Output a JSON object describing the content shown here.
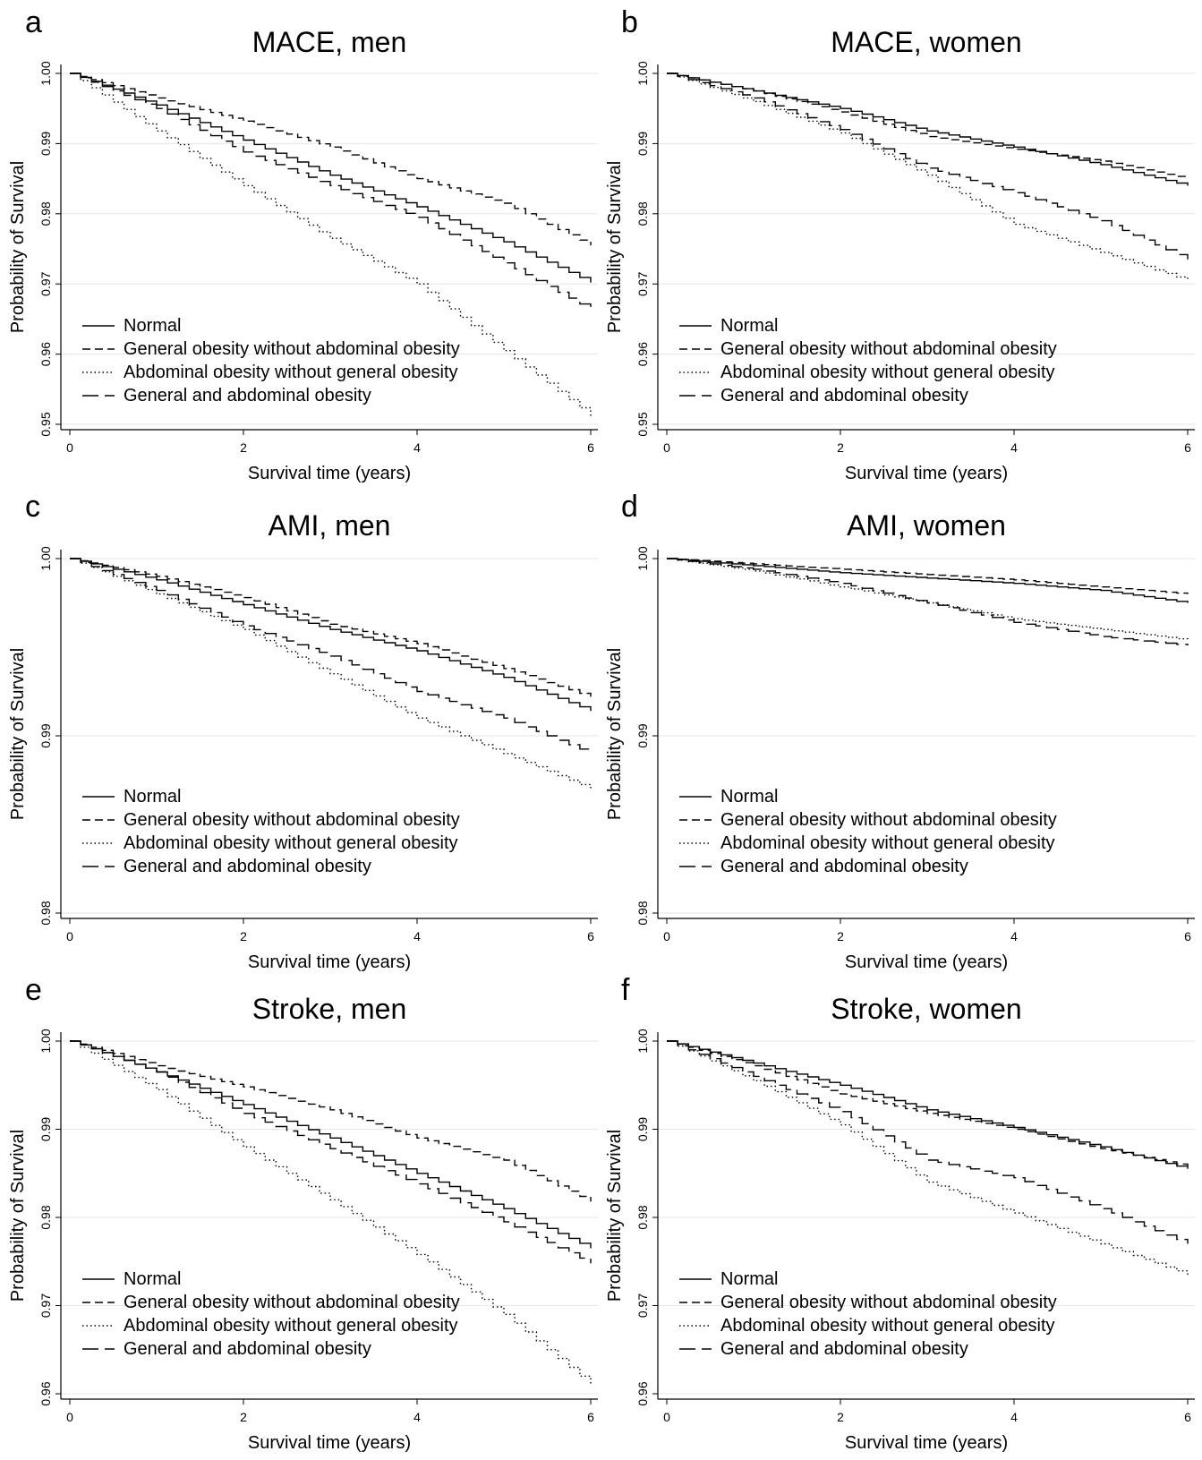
{
  "legend_entries": [
    {
      "label": "Normal",
      "dash": "solid"
    },
    {
      "label": "General obesity without abdominal obesity",
      "dash": "dashed"
    },
    {
      "label": "Abdominal obesity without general obesity",
      "dash": "dotted"
    },
    {
      "label": "General and abdominal obesity",
      "dash": "longdash"
    }
  ],
  "chart_data": [
    {
      "panel": "a",
      "type": "line",
      "title": "MACE, men",
      "xlabel": "Survival time (years)",
      "ylabel": "Probability of Survival",
      "xlim": [
        0,
        6
      ],
      "ylim": [
        0.95,
        1.0
      ],
      "xticks": [
        "0",
        "2",
        "4",
        "6"
      ],
      "yticks": [
        "0.95",
        "0.96",
        "0.97",
        "0.98",
        "0.99",
        "1.00"
      ],
      "grid": true,
      "legend_position": "bottom-left",
      "x": [
        0,
        1,
        2,
        3,
        4,
        5,
        6
      ],
      "series": [
        {
          "name": "Normal",
          "dash": "solid",
          "values": [
            1.0,
            0.9955,
            0.9905,
            0.9855,
            0.981,
            0.976,
            0.9702
          ]
        },
        {
          "name": "General obesity without abdominal obesity",
          "dash": "dashed",
          "values": [
            1.0,
            0.9965,
            0.9932,
            0.9895,
            0.985,
            0.9815,
            0.9755
          ]
        },
        {
          "name": "Abdominal obesity without general obesity",
          "dash": "dotted",
          "values": [
            1.0,
            0.9918,
            0.984,
            0.9765,
            0.97,
            0.9605,
            0.9512
          ]
        },
        {
          "name": "General and abdominal obesity",
          "dash": "longdash",
          "values": [
            1.0,
            0.995,
            0.9888,
            0.984,
            0.9795,
            0.973,
            0.9663
          ]
        }
      ]
    },
    {
      "panel": "b",
      "type": "line",
      "title": "MACE, women",
      "xlabel": "Survival time (years)",
      "ylabel": "Probability of Survival",
      "xlim": [
        0,
        6
      ],
      "ylim": [
        0.95,
        1.0
      ],
      "xticks": [
        "0",
        "2",
        "4",
        "6"
      ],
      "yticks": [
        "0.95",
        "0.96",
        "0.97",
        "0.98",
        "0.99",
        "1.00"
      ],
      "grid": true,
      "legend_position": "bottom-left",
      "x": [
        0,
        1,
        2,
        3,
        4,
        5,
        6
      ],
      "series": [
        {
          "name": "Normal",
          "dash": "solid",
          "values": [
            1.0,
            0.9975,
            0.995,
            0.9918,
            0.9895,
            0.987,
            0.984
          ]
        },
        {
          "name": "General obesity without abdominal obesity",
          "dash": "dashed",
          "values": [
            1.0,
            0.9975,
            0.9945,
            0.991,
            0.9892,
            0.9875,
            0.985
          ]
        },
        {
          "name": "Abdominal obesity without general obesity",
          "dash": "dotted",
          "values": [
            1.0,
            0.996,
            0.9915,
            0.9855,
            0.9785,
            0.9745,
            0.9705
          ]
        },
        {
          "name": "General and abdominal obesity",
          "dash": "longdash",
          "values": [
            1.0,
            0.9965,
            0.992,
            0.9865,
            0.983,
            0.979,
            0.9735
          ]
        }
      ]
    },
    {
      "panel": "c",
      "type": "line",
      "title": "AMI, men",
      "xlabel": "Survival time (years)",
      "ylabel": "Probability of Survival",
      "xlim": [
        0,
        6
      ],
      "ylim": [
        0.98,
        1.0
      ],
      "xticks": [
        "0",
        "2",
        "4",
        "6"
      ],
      "yticks": [
        "0.98",
        "0.99",
        "1.00"
      ],
      "grid": true,
      "legend_position": "bottom-left",
      "x": [
        0,
        1,
        2,
        3,
        4,
        5,
        6
      ],
      "series": [
        {
          "name": "Normal",
          "dash": "solid",
          "values": [
            1.0,
            0.9988,
            0.9974,
            0.996,
            0.9948,
            0.9933,
            0.9914
          ]
        },
        {
          "name": "General obesity without abdominal obesity",
          "dash": "dashed",
          "values": [
            1.0,
            0.999,
            0.9978,
            0.9963,
            0.9952,
            0.9938,
            0.9922
          ]
        },
        {
          "name": "Abdominal obesity without general obesity",
          "dash": "dotted",
          "values": [
            1.0,
            0.998,
            0.996,
            0.9935,
            0.991,
            0.989,
            0.987
          ]
        },
        {
          "name": "General and abdominal obesity",
          "dash": "longdash",
          "values": [
            1.0,
            0.9982,
            0.9962,
            0.9945,
            0.9925,
            0.991,
            0.989
          ]
        }
      ]
    },
    {
      "panel": "d",
      "type": "line",
      "title": "AMI, women",
      "xlabel": "Survival time (years)",
      "ylabel": "Probability of Survival",
      "xlim": [
        0,
        6
      ],
      "ylim": [
        0.98,
        1.0
      ],
      "xticks": [
        "0",
        "2",
        "4",
        "6"
      ],
      "yticks": [
        "0.98",
        "0.99",
        "1.00"
      ],
      "grid": true,
      "legend_position": "bottom-left",
      "x": [
        0,
        1,
        2,
        3,
        4,
        5,
        6
      ],
      "series": [
        {
          "name": "Normal",
          "dash": "solid",
          "values": [
            1.0,
            0.9996,
            0.9992,
            0.9989,
            0.9986,
            0.9982,
            0.9975
          ]
        },
        {
          "name": "General obesity without abdominal obesity",
          "dash": "dashed",
          "values": [
            1.0,
            0.9997,
            0.9994,
            0.9991,
            0.9988,
            0.9984,
            0.998
          ]
        },
        {
          "name": "Abdominal obesity without general obesity",
          "dash": "dotted",
          "values": [
            1.0,
            0.9993,
            0.9984,
            0.9975,
            0.9966,
            0.996,
            0.9954
          ]
        },
        {
          "name": "General and abdominal obesity",
          "dash": "longdash",
          "values": [
            1.0,
            0.9994,
            0.9986,
            0.9975,
            0.9964,
            0.9956,
            0.9951
          ]
        }
      ]
    },
    {
      "panel": "e",
      "type": "line",
      "title": "Stroke, men",
      "xlabel": "Survival time (years)",
      "ylabel": "Probability of Survival",
      "xlim": [
        0,
        6
      ],
      "ylim": [
        0.96,
        1.0
      ],
      "xticks": [
        "0",
        "2",
        "4",
        "6"
      ],
      "yticks": [
        "0.96",
        "0.97",
        "0.98",
        "0.99",
        "1.00"
      ],
      "grid": true,
      "legend_position": "bottom-left",
      "x": [
        0,
        1,
        2,
        3,
        4,
        5,
        6
      ],
      "series": [
        {
          "name": "Normal",
          "dash": "solid",
          "values": [
            1.0,
            0.9965,
            0.9928,
            0.989,
            0.985,
            0.981,
            0.9765
          ]
        },
        {
          "name": "General obesity without abdominal obesity",
          "dash": "dashed",
          "values": [
            1.0,
            0.9972,
            0.9948,
            0.9922,
            0.989,
            0.9865,
            0.9818
          ]
        },
        {
          "name": "Abdominal obesity without general obesity",
          "dash": "dotted",
          "values": [
            1.0,
            0.9945,
            0.988,
            0.982,
            0.9758,
            0.969,
            0.961
          ]
        },
        {
          "name": "General and abdominal obesity",
          "dash": "longdash",
          "values": [
            1.0,
            0.9965,
            0.9918,
            0.9878,
            0.9838,
            0.9795,
            0.9748
          ]
        }
      ]
    },
    {
      "panel": "f",
      "type": "line",
      "title": "Stroke, women",
      "xlabel": "Survival time (years)",
      "ylabel": "Probability of Survival",
      "xlim": [
        0,
        6
      ],
      "ylim": [
        0.96,
        1.0
      ],
      "xticks": [
        "0",
        "2",
        "4",
        "6"
      ],
      "yticks": [
        "0.96",
        "0.97",
        "0.98",
        "0.99",
        "1.00"
      ],
      "grid": true,
      "legend_position": "bottom-left",
      "x": [
        0,
        1,
        2,
        3,
        4,
        5,
        6
      ],
      "series": [
        {
          "name": "Normal",
          "dash": "solid",
          "values": [
            1.0,
            0.9975,
            0.995,
            0.9922,
            0.9902,
            0.988,
            0.9855
          ]
        },
        {
          "name": "General obesity without abdominal obesity",
          "dash": "dashed",
          "values": [
            1.0,
            0.9972,
            0.994,
            0.9918,
            0.99,
            0.9878,
            0.9858
          ]
        },
        {
          "name": "Abdominal obesity without general obesity",
          "dash": "dotted",
          "values": [
            1.0,
            0.9955,
            0.9905,
            0.984,
            0.9805,
            0.977,
            0.9735
          ]
        },
        {
          "name": "General and abdominal obesity",
          "dash": "longdash",
          "values": [
            1.0,
            0.996,
            0.992,
            0.9865,
            0.9845,
            0.981,
            0.977
          ]
        }
      ]
    }
  ]
}
